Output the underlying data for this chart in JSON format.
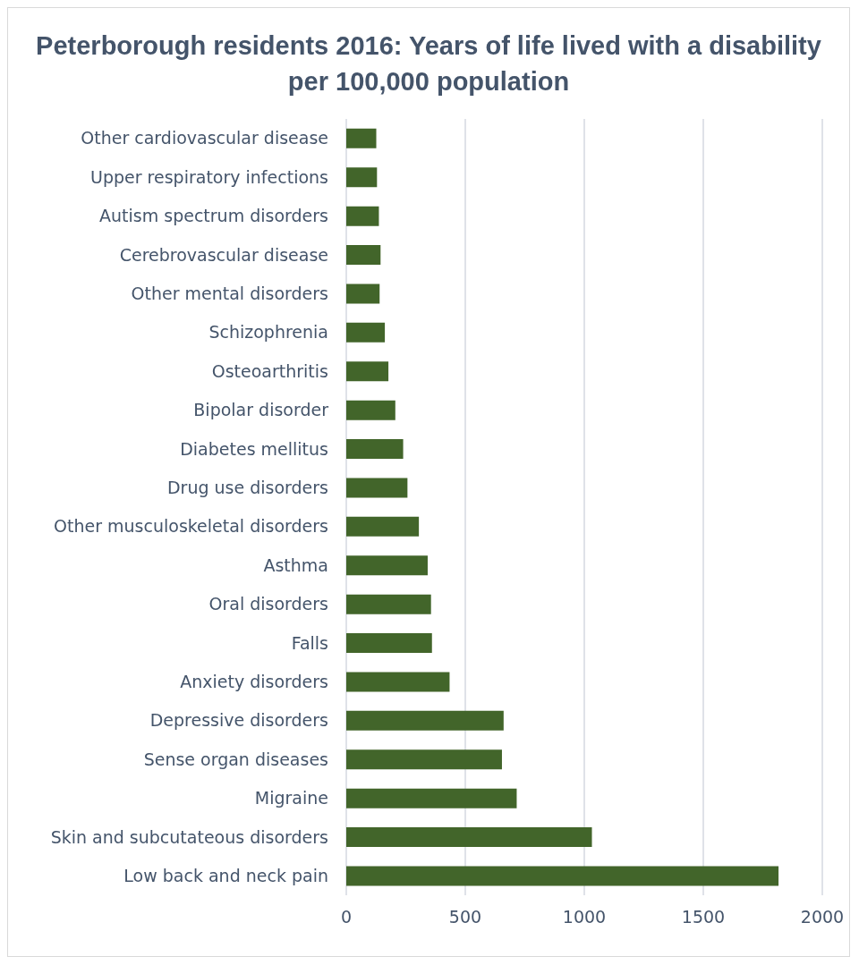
{
  "chart_data": {
    "type": "bar",
    "orientation": "horizontal",
    "title": "Peterborough residents 2016: Years of life lived with a disability per 100,000 population",
    "categories": [
      "Other cardiovascular disease",
      "Upper respiratory infections",
      "Autism spectrum disorders",
      "Cerebrovascular disease",
      "Other mental disorders",
      "Schizophrenia",
      "Osteoarthritis",
      "Bipolar disorder",
      "Diabetes mellitus",
      "Drug use disorders",
      "Other musculoskeletal disorders",
      "Asthma",
      "Oral disorders",
      "Falls",
      "Anxiety disorders",
      "Depressive disorders",
      "Sense organ diseases",
      "Migraine",
      "Skin and subcutateous disorders",
      "Low back and neck pain"
    ],
    "values": [
      126,
      129,
      137,
      144,
      140,
      162,
      177,
      206,
      239,
      257,
      305,
      342,
      356,
      360,
      434,
      661,
      654,
      716,
      1032,
      1816
    ],
    "color": "#42652a",
    "xlim": [
      0,
      2000
    ],
    "xticks": [
      0,
      500,
      1000,
      1500,
      2000
    ],
    "grid": "x"
  }
}
